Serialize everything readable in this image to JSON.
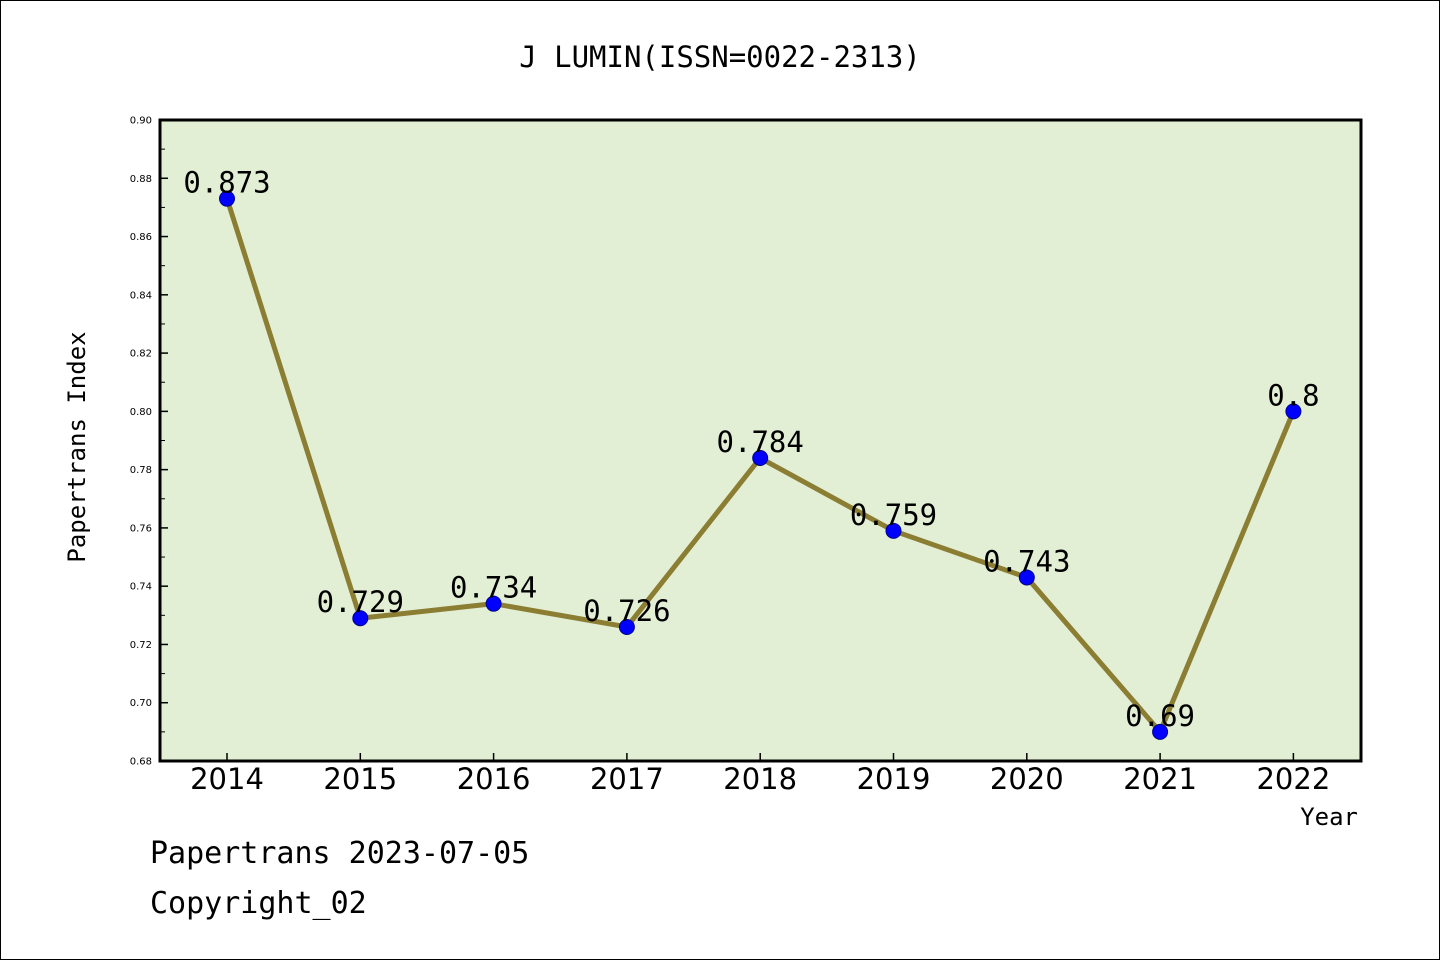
{
  "chart_data": {
    "type": "line",
    "title": "J LUMIN(ISSN=0022-2313)",
    "xlabel": "Year",
    "ylabel": "Papertrans Index",
    "categories": [
      "2014",
      "2015",
      "2016",
      "2017",
      "2018",
      "2019",
      "2020",
      "2021",
      "2022"
    ],
    "values": [
      0.873,
      0.729,
      0.734,
      0.726,
      0.784,
      0.759,
      0.743,
      0.69,
      0.8
    ],
    "data_labels": [
      "0.873",
      "0.729",
      "0.734",
      "0.726",
      "0.784",
      "0.759",
      "0.743",
      "0.69",
      "0.8"
    ],
    "ylim": [
      0.68,
      0.9
    ],
    "yticks": [
      "0.68",
      "0.70",
      "0.72",
      "0.74",
      "0.76",
      "0.78",
      "0.80",
      "0.82",
      "0.84",
      "0.86",
      "0.88",
      "0.90"
    ],
    "grid": false,
    "colors": {
      "plot_background": "#e2efd5",
      "line": "#8b7d32",
      "marker": "#0000ff"
    }
  },
  "footer": {
    "line1": "Papertrans 2023-07-05",
    "line2": "Copyright_02"
  }
}
